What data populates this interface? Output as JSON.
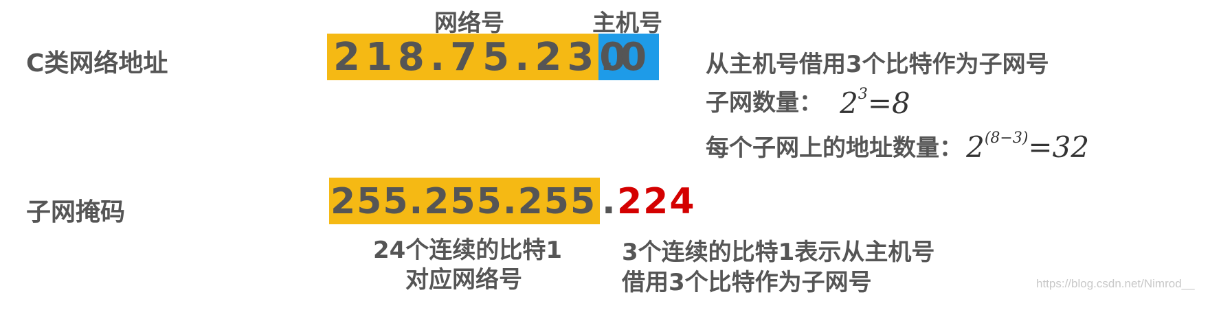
{
  "headers": {
    "network_part": "网络号",
    "host_part": "主机号"
  },
  "row_labels": {
    "class_c_address": "C类网络地址",
    "subnet_mask": "子网掩码"
  },
  "address": {
    "network": "218.75.230",
    "host": ".0",
    "network_color": "#F5B914",
    "host_color": "#1E9BE8"
  },
  "mask": {
    "network": "255.255.255",
    "dot": ".",
    "subnet": "224",
    "network_color": "#F5B914",
    "subnet_color": "#D40000"
  },
  "notes": {
    "borrow": "从主机号借用3个比特作为子网号",
    "subnet_count_label": "子网数量：",
    "subnet_count_base": "2",
    "subnet_count_exp": "3",
    "subnet_count_result": "=8",
    "addr_per_subnet_label": "每个子网上的地址数量：",
    "addr_per_subnet_base": "2",
    "addr_per_subnet_exp": "(8−3)",
    "addr_per_subnet_result": "=32"
  },
  "captions": {
    "mask_network_line1": "24个连续的比特1",
    "mask_network_line2": "对应网络号",
    "mask_subnet_line1": "3个连续的比特1表示从主机号",
    "mask_subnet_line2": "借用3个比特作为子网号"
  },
  "watermark": "https://blog.csdn.net/Nimrod__"
}
